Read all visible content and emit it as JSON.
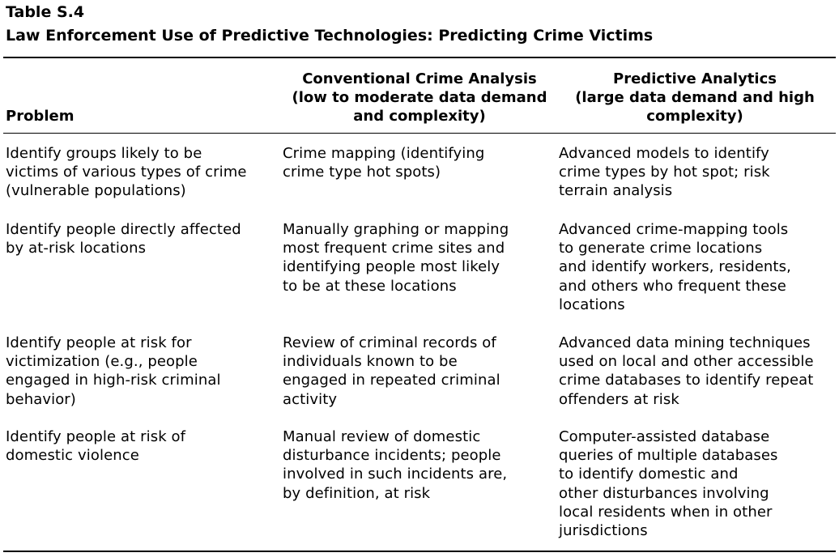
{
  "caption": {
    "label": "Table S.4",
    "title": "Law Enforcement Use of Predictive Technologies: Predicting Crime Victims"
  },
  "columns": {
    "problem": [
      "Problem"
    ],
    "conventional": [
      "Conventional Crime Analysis",
      "(low to moderate data demand",
      "and complexity)"
    ],
    "predictive": [
      "Predictive Analytics",
      "(large data demand and high",
      "complexity)"
    ]
  },
  "rows": [
    {
      "problem": [
        "Identify groups likely to be",
        "victims of various types of crime",
        "(vulnerable populations)"
      ],
      "conventional": [
        "Crime mapping (identifying",
        "crime type hot spots)"
      ],
      "predictive": [
        "Advanced models to identify",
        "crime types by hot spot; risk",
        "terrain analysis"
      ]
    },
    {
      "problem": [
        "Identify people directly affected",
        "by at-risk locations"
      ],
      "conventional": [
        "Manually graphing or mapping",
        "most frequent crime sites and",
        "identifying people most likely",
        "to be at these locations"
      ],
      "predictive": [
        "Advanced crime-mapping tools",
        "to generate crime locations",
        "and identify workers, residents,",
        "and others who frequent these",
        "locations"
      ]
    },
    {
      "problem": [
        "Identify people at risk for",
        "victimization (e.g., people",
        "engaged in high-risk criminal",
        "behavior)"
      ],
      "conventional": [
        "Review of criminal records of",
        "individuals known to be",
        "engaged in repeated criminal",
        "activity"
      ],
      "predictive": [
        "Advanced data mining techniques",
        "used on local and other accessible",
        "crime databases to identify repeat",
        "offenders at risk"
      ]
    },
    {
      "problem": [
        "Identify people at risk of",
        "domestic violence"
      ],
      "conventional": [
        "Manual review of domestic",
        "disturbance incidents; people",
        "involved in such incidents are,",
        "by definition, at risk"
      ],
      "predictive": [
        "Computer-assisted database",
        "queries of multiple databases",
        "to identify domestic and",
        "other disturbances involving",
        "local residents when in other",
        "jurisdictions"
      ]
    }
  ]
}
